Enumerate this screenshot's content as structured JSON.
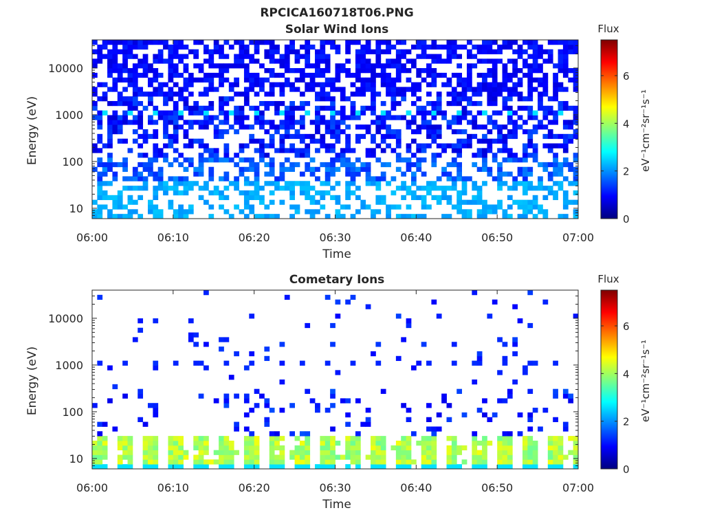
{
  "page_title": "RPCICA160718T06.PNG",
  "chart_data": [
    {
      "type": "heatmap",
      "title": "Solar Wind Ions",
      "xlabel": "Time",
      "ylabel": "Energy (eV)",
      "x_ticks": [
        "06:00",
        "06:10",
        "06:20",
        "06:30",
        "06:40",
        "06:50",
        "07:00"
      ],
      "x_range": [
        "06:00",
        "07:00"
      ],
      "y_scale": "log",
      "y_ticks": [
        "10",
        "100",
        "1000",
        "10000"
      ],
      "y_tick_values": [
        10,
        100,
        1000,
        10000
      ],
      "y_range": [
        6,
        40000
      ],
      "colorbar": {
        "title": "Flux",
        "unit": "eV⁻¹cm⁻²sr⁻¹s⁻¹",
        "range": [
          0,
          7.5
        ],
        "ticks": [
          "0",
          "2",
          "4",
          "6"
        ],
        "tick_values": [
          0,
          2,
          4,
          6
        ],
        "colormap": "jet"
      },
      "grid": false,
      "pattern": {
        "time_bins": 96,
        "energy_bins": 38,
        "high_energy_level": 0.7,
        "mid_energy_level": 1.8,
        "low_energy_level": 2.4,
        "peak_energy_eV": 1150,
        "peak_level": 2.6
      }
    },
    {
      "type": "heatmap",
      "title": "Cometary Ions",
      "xlabel": "Time",
      "ylabel": "Energy (eV)",
      "x_ticks": [
        "06:00",
        "06:10",
        "06:20",
        "06:30",
        "06:40",
        "06:50",
        "07:00"
      ],
      "x_range": [
        "06:00",
        "07:00"
      ],
      "y_scale": "log",
      "y_ticks": [
        "10",
        "100",
        "1000",
        "10000"
      ],
      "y_tick_values": [
        10,
        100,
        1000,
        10000
      ],
      "y_range": [
        6,
        40000
      ],
      "colorbar": {
        "title": "Flux",
        "unit": "eV⁻¹cm⁻²sr⁻¹s⁻¹",
        "range": [
          0,
          7.5
        ],
        "ticks": [
          "0",
          "2",
          "4",
          "6"
        ],
        "tick_values": [
          0,
          2,
          4,
          6
        ],
        "colormap": "jet"
      },
      "grid": false,
      "pattern": {
        "time_bins": 96,
        "energy_bins": 38,
        "sparse_level": 1.3,
        "low_energy_level": 3.6,
        "low_energy_peak_level": 4.6,
        "peak_energy_eV": 1150,
        "peak_level": 1.2
      }
    }
  ]
}
